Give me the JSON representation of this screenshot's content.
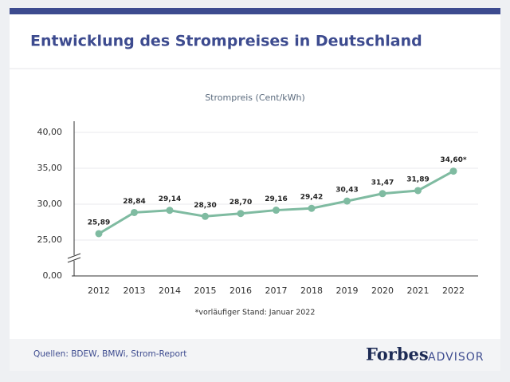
{
  "chart_data": {
    "type": "line",
    "title": "Entwicklung des Strompreises in Deutschland",
    "subtitle": "Strompreis (Cent/kWh)",
    "note": "*vorläufiger Stand: Januar 2022",
    "categories": [
      "2012",
      "2013",
      "2014",
      "2015",
      "2016",
      "2017",
      "2018",
      "2019",
      "2020",
      "2021",
      "2022"
    ],
    "values": [
      25.89,
      28.84,
      29.14,
      28.3,
      28.7,
      29.16,
      29.42,
      30.43,
      31.47,
      31.89,
      34.6
    ],
    "value_labels": [
      "25,89",
      "28,84",
      "29,14",
      "28,30",
      "28,70",
      "29,16",
      "29,42",
      "30,43",
      "31,47",
      "31,89",
      "34,60*"
    ],
    "color": "#7fbba1",
    "ylim": [
      0,
      40
    ],
    "axis_break": [
      0,
      25
    ],
    "yticks": [
      {
        "value": 0,
        "label": "0,00"
      },
      {
        "value": 25,
        "label": "25,00"
      },
      {
        "value": 30,
        "label": "30,00"
      },
      {
        "value": 35,
        "label": "35,00"
      },
      {
        "value": 40,
        "label": "40,00"
      }
    ],
    "grid": true
  },
  "footer": {
    "source": "Quellen: BDEW, BMWi, Strom-Report",
    "brand": "Forbes",
    "brand_sub": "ADVISOR"
  }
}
